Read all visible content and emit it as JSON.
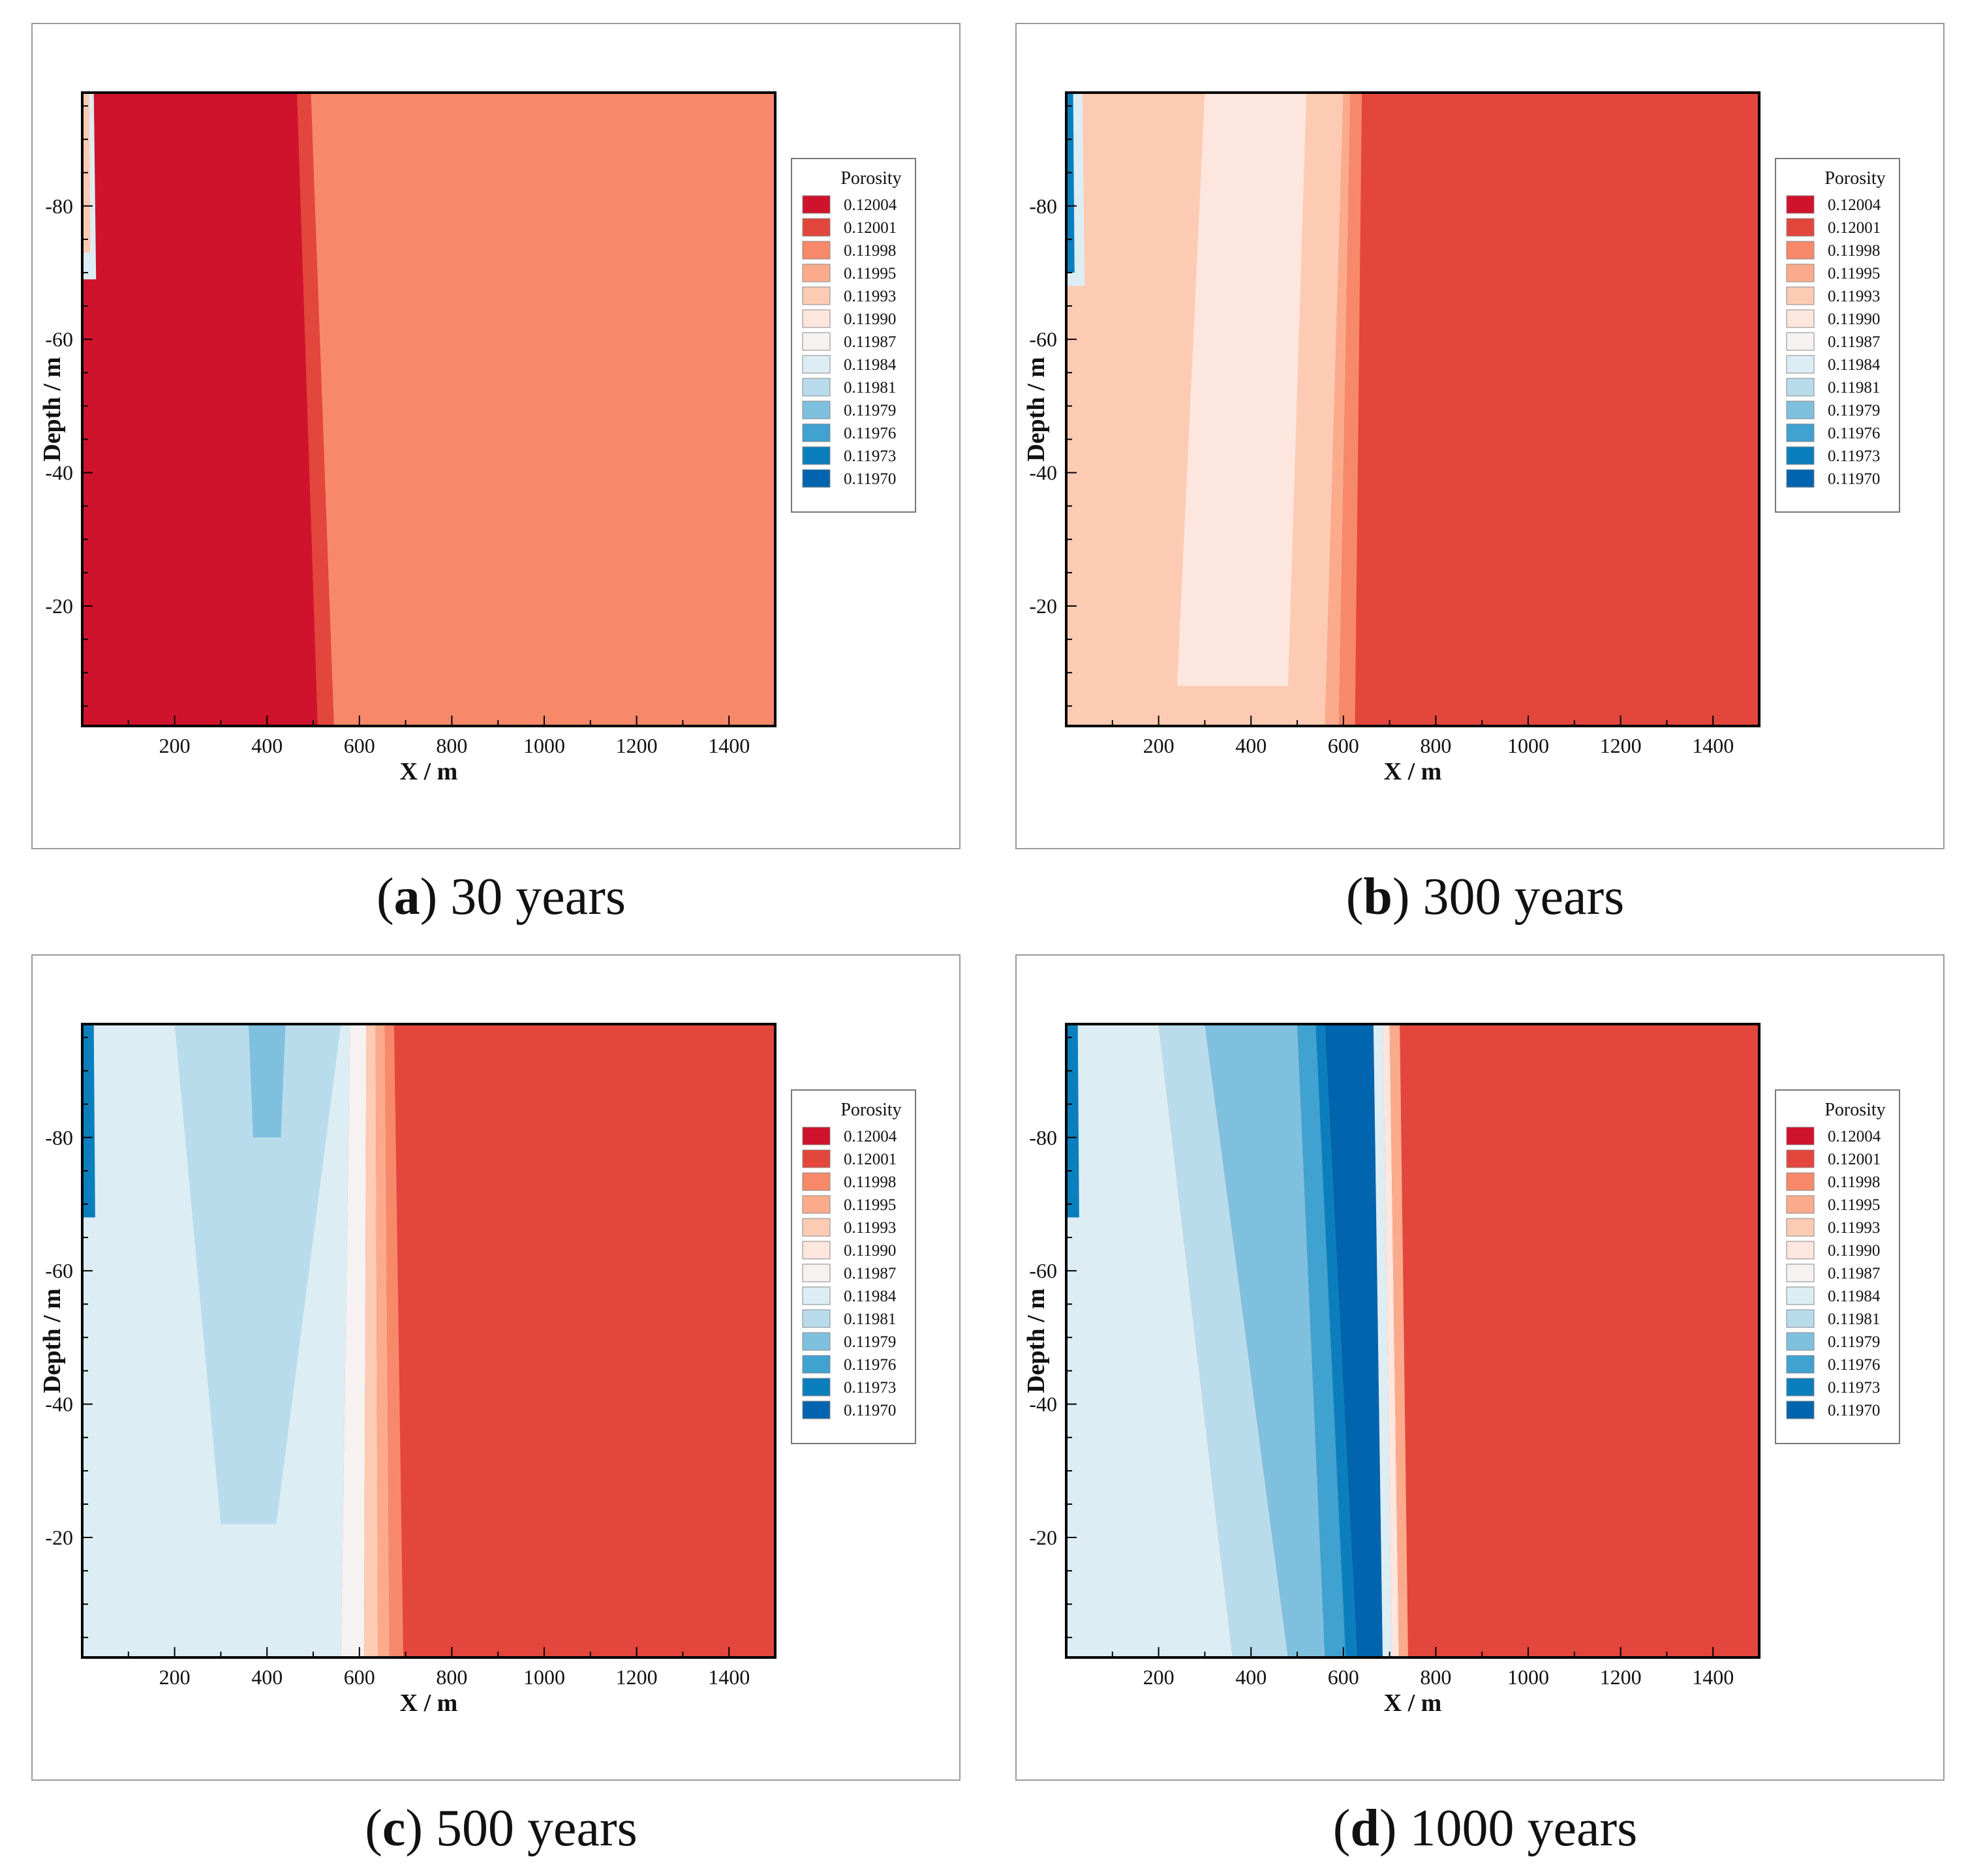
{
  "chart_data": {
    "type": "heatmap",
    "shared": {
      "xlabel": "X / m",
      "ylabel": "Depth / m",
      "xticks": [
        "200",
        "400",
        "600",
        "800",
        "1000",
        "1200",
        "1400"
      ],
      "xtick_values": [
        200,
        400,
        600,
        800,
        1000,
        1200,
        1400
      ],
      "yticks": [
        "-20",
        "-40",
        "-60",
        "-80"
      ],
      "ytick_values": [
        -20,
        -40,
        -60,
        -80
      ],
      "xlim": [
        0,
        1500
      ],
      "ylim": [
        -97,
        -2
      ],
      "legend_title": "Porosity",
      "levels": [
        "0.12004",
        "0.12001",
        "0.11998",
        "0.11995",
        "0.11993",
        "0.11990",
        "0.11987",
        "0.11984",
        "0.11981",
        "0.11979",
        "0.11976",
        "0.11973",
        "0.11970"
      ],
      "level_colors": [
        "#d0132c",
        "#e3463c",
        "#f7896a",
        "#fbab8c",
        "#fdcbb3",
        "#fde6dd",
        "#f5f2f1",
        "#dcedf4",
        "#b9dcec",
        "#7fc0de",
        "#3fa2d1",
        "#0b7fbd",
        "#0064ae"
      ]
    },
    "panels": [
      {
        "id": "a",
        "label": "a",
        "caption": "30 years",
        "background_level": 2,
        "bands": [
          {
            "level": 0,
            "x_top": [
              0,
              510
            ],
            "x_bottom": [
              0,
              465
            ],
            "depth": [
              -2,
              -97
            ]
          },
          {
            "level": 1,
            "x_top": [
              510,
              545
            ],
            "x_bottom": [
              465,
              495
            ],
            "depth": [
              -2,
              -97
            ]
          },
          {
            "level": 7,
            "x_top": [
              0,
              30
            ],
            "x_bottom": [
              0,
              25
            ],
            "depth": [
              -69,
              -97
            ]
          },
          {
            "level": 4,
            "x_top": [
              0,
              18
            ],
            "x_bottom": [
              0,
              15
            ],
            "depth": [
              -73,
              -97
            ]
          }
        ]
      },
      {
        "id": "b",
        "label": "b",
        "caption": "300 years",
        "background_level": 1,
        "bands": [
          {
            "level": 4,
            "x_top": [
              0,
              560
            ],
            "x_bottom": [
              0,
              600
            ],
            "depth": [
              -2,
              -97
            ]
          },
          {
            "level": 5,
            "x_top": [
              240,
              480
            ],
            "x_bottom": [
              300,
              520
            ],
            "depth": [
              -8,
              -97
            ]
          },
          {
            "level": 3,
            "x_top": [
              560,
              590
            ],
            "x_bottom": [
              600,
              615
            ],
            "depth": [
              -2,
              -97
            ]
          },
          {
            "level": 2,
            "x_top": [
              590,
              625
            ],
            "x_bottom": [
              615,
              640
            ],
            "depth": [
              -2,
              -97
            ]
          },
          {
            "level": 7,
            "x_top": [
              0,
              40
            ],
            "x_bottom": [
              0,
              35
            ],
            "depth": [
              -68,
              -97
            ]
          },
          {
            "level": 11,
            "x_top": [
              0,
              18
            ],
            "x_bottom": [
              0,
              15
            ],
            "depth": [
              -70,
              -97
            ]
          }
        ]
      },
      {
        "id": "c",
        "label": "c",
        "caption": "500 years",
        "background_level": 1,
        "bands": [
          {
            "level": 7,
            "x_top": [
              0,
              560
            ],
            "x_bottom": [
              0,
              580
            ],
            "depth": [
              -2,
              -97
            ]
          },
          {
            "level": 8,
            "x_top": [
              300,
              420
            ],
            "x_bottom": [
              200,
              560
            ],
            "depth": [
              -22,
              -97
            ]
          },
          {
            "level": 9,
            "x_top": [
              370,
              430
            ],
            "x_bottom": [
              360,
              440
            ],
            "depth": [
              -80,
              -97
            ]
          },
          {
            "level": 6,
            "x_top": [
              560,
              610
            ],
            "x_bottom": [
              580,
              615
            ],
            "depth": [
              -2,
              -97
            ]
          },
          {
            "level": 4,
            "x_top": [
              610,
              640
            ],
            "x_bottom": [
              615,
              635
            ],
            "depth": [
              -2,
              -97
            ]
          },
          {
            "level": 3,
            "x_top": [
              640,
              665
            ],
            "x_bottom": [
              635,
              655
            ],
            "depth": [
              -2,
              -97
            ]
          },
          {
            "level": 2,
            "x_top": [
              665,
              695
            ],
            "x_bottom": [
              655,
              675
            ],
            "depth": [
              -2,
              -97
            ]
          },
          {
            "level": 11,
            "x_top": [
              0,
              28
            ],
            "x_bottom": [
              0,
              25
            ],
            "depth": [
              -68,
              -97
            ]
          }
        ]
      },
      {
        "id": "d",
        "label": "d",
        "caption": "1000 years",
        "background_level": 1,
        "bands": [
          {
            "level": 7,
            "x_top": [
              0,
              360
            ],
            "x_bottom": [
              0,
              200
            ],
            "depth": [
              -2,
              -97
            ]
          },
          {
            "level": 8,
            "x_top": [
              360,
              480
            ],
            "x_bottom": [
              200,
              300
            ],
            "depth": [
              -2,
              -97
            ]
          },
          {
            "level": 9,
            "x_top": [
              480,
              560
            ],
            "x_bottom": [
              300,
              500
            ],
            "depth": [
              -2,
              -97
            ]
          },
          {
            "level": 10,
            "x_top": [
              560,
              605
            ],
            "x_bottom": [
              500,
              540
            ],
            "depth": [
              -2,
              -97
            ]
          },
          {
            "level": 11,
            "x_top": [
              605,
              630
            ],
            "x_bottom": [
              540,
              560
            ],
            "depth": [
              -2,
              -97
            ]
          },
          {
            "level": 12,
            "x_top": [
              630,
              685
            ],
            "x_bottom": [
              560,
              665
            ],
            "depth": [
              -2,
              -97
            ]
          },
          {
            "level": 7,
            "x_top": [
              685,
              705
            ],
            "x_bottom": [
              665,
              685
            ],
            "depth": [
              -2,
              -97
            ]
          },
          {
            "level": 5,
            "x_top": [
              705,
              720
            ],
            "x_bottom": [
              685,
              700
            ],
            "depth": [
              -2,
              -97
            ]
          },
          {
            "level": 3,
            "x_top": [
              720,
              740
            ],
            "x_bottom": [
              700,
              722
            ],
            "depth": [
              -2,
              -97
            ]
          },
          {
            "level": 11,
            "x_top": [
              0,
              28
            ],
            "x_bottom": [
              0,
              25
            ],
            "depth": [
              -68,
              -97
            ]
          }
        ]
      }
    ]
  }
}
